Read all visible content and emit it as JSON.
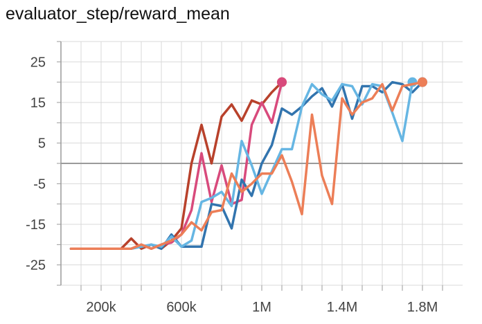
{
  "chart_data": {
    "type": "line",
    "title": "evaluator_step/reward_mean",
    "xlabel": "",
    "ylabel": "",
    "xlim": [
      0,
      2000000
    ],
    "ylim": [
      -30,
      30
    ],
    "x_ticks": [
      200000,
      600000,
      1000000,
      1400000,
      1800000
    ],
    "x_tick_labels": [
      "200k",
      "600k",
      "1M",
      "1.4M",
      "1.8M"
    ],
    "y_ticks": [
      25,
      15,
      5,
      -5,
      -15,
      -25
    ],
    "y_tick_labels": [
      "25",
      "15",
      "5",
      "-5",
      "-15",
      "-25"
    ],
    "grid": true,
    "colors": {
      "dark_red": "#b8412b",
      "pink": "#d84a7c",
      "dark_blue": "#3274ae",
      "light_blue": "#66b6e3",
      "orange": "#ec7e57",
      "grid": "#d9d9d9",
      "axis": "#9a9a9a"
    },
    "series": [
      {
        "color_key": "dark_red",
        "x": [
          50000,
          100000,
          150000,
          200000,
          250000,
          300000,
          350000,
          400000,
          450000,
          500000,
          550000,
          600000,
          650000,
          700000,
          750000,
          800000,
          850000,
          900000,
          950000,
          1000000,
          1050000,
          1100000
        ],
        "y": [
          -21,
          -21,
          -21,
          -21,
          -21,
          -21,
          -18.5,
          -21,
          -20,
          -21,
          -19,
          -16,
          0,
          9.5,
          0,
          11.5,
          14.5,
          10.5,
          15.5,
          14.5,
          17.5,
          20
        ]
      },
      {
        "color_key": "pink",
        "x": [
          50000,
          100000,
          150000,
          200000,
          250000,
          300000,
          350000,
          400000,
          450000,
          500000,
          550000,
          600000,
          650000,
          700000,
          750000,
          800000,
          850000,
          900000,
          950000,
          1000000,
          1050000,
          1100000
        ],
        "y": [
          -21,
          -21,
          -21,
          -21,
          -21,
          -21,
          -21,
          -20,
          -21,
          -20,
          -19.5,
          -17.5,
          -11.5,
          2.5,
          -9.5,
          -0.5,
          -10,
          -9,
          9.5,
          15,
          10,
          20
        ]
      },
      {
        "color_key": "dark_blue",
        "x": [
          50000,
          100000,
          150000,
          200000,
          250000,
          300000,
          350000,
          400000,
          450000,
          500000,
          550000,
          600000,
          650000,
          700000,
          750000,
          800000,
          850000,
          900000,
          950000,
          1000000,
          1050000,
          1100000,
          1150000,
          1200000,
          1250000,
          1300000,
          1350000,
          1400000,
          1450000,
          1500000,
          1550000,
          1600000,
          1650000,
          1700000,
          1750000,
          1800000
        ],
        "y": [
          -21,
          -21,
          -21,
          -21,
          -21,
          -21,
          -21,
          -20.5,
          -20,
          -21,
          -17.5,
          -20.5,
          -20.5,
          -20.5,
          -10,
          -10.5,
          -16,
          -4,
          -8,
          0,
          4.5,
          13.5,
          12,
          14,
          16.5,
          18.5,
          14,
          19.5,
          11,
          19,
          19,
          17.5,
          20,
          19.5,
          17.5,
          20
        ]
      },
      {
        "color_key": "light_blue",
        "x": [
          50000,
          100000,
          150000,
          200000,
          250000,
          300000,
          350000,
          400000,
          450000,
          500000,
          550000,
          600000,
          650000,
          700000,
          750000,
          800000,
          850000,
          900000,
          950000,
          1000000,
          1050000,
          1100000,
          1150000,
          1200000,
          1250000,
          1300000,
          1350000,
          1400000,
          1450000,
          1500000,
          1550000,
          1600000,
          1650000,
          1700000,
          1750000
        ],
        "y": [
          -21,
          -21,
          -21,
          -21,
          -21,
          -21,
          -21,
          -20.5,
          -20,
          -20.5,
          -18,
          -20.5,
          -19,
          -9.5,
          -8.5,
          -7,
          -10.5,
          5.5,
          -0.5,
          -7.5,
          -2,
          3.5,
          3.5,
          14,
          19.5,
          17,
          15.5,
          19.5,
          19,
          14.5,
          19.5,
          19,
          12.5,
          5.5,
          20
        ]
      },
      {
        "color_key": "orange",
        "x": [
          50000,
          100000,
          150000,
          200000,
          250000,
          300000,
          350000,
          400000,
          450000,
          500000,
          550000,
          600000,
          650000,
          700000,
          750000,
          800000,
          850000,
          900000,
          950000,
          1000000,
          1050000,
          1100000,
          1150000,
          1200000,
          1250000,
          1300000,
          1350000,
          1400000,
          1450000,
          1500000,
          1550000,
          1600000,
          1650000,
          1700000,
          1750000,
          1800000
        ],
        "y": [
          -21,
          -21,
          -21,
          -21,
          -21,
          -21,
          -21,
          -20,
          -21,
          -20,
          -19,
          -17.5,
          -14.5,
          -16.5,
          -12,
          -11.5,
          -2.5,
          -7,
          -5,
          -2.5,
          -2.5,
          2,
          -4.5,
          -12.5,
          12,
          -3,
          -10,
          16,
          12,
          15,
          16,
          19.5,
          13,
          19,
          19.5,
          20
        ]
      }
    ]
  }
}
